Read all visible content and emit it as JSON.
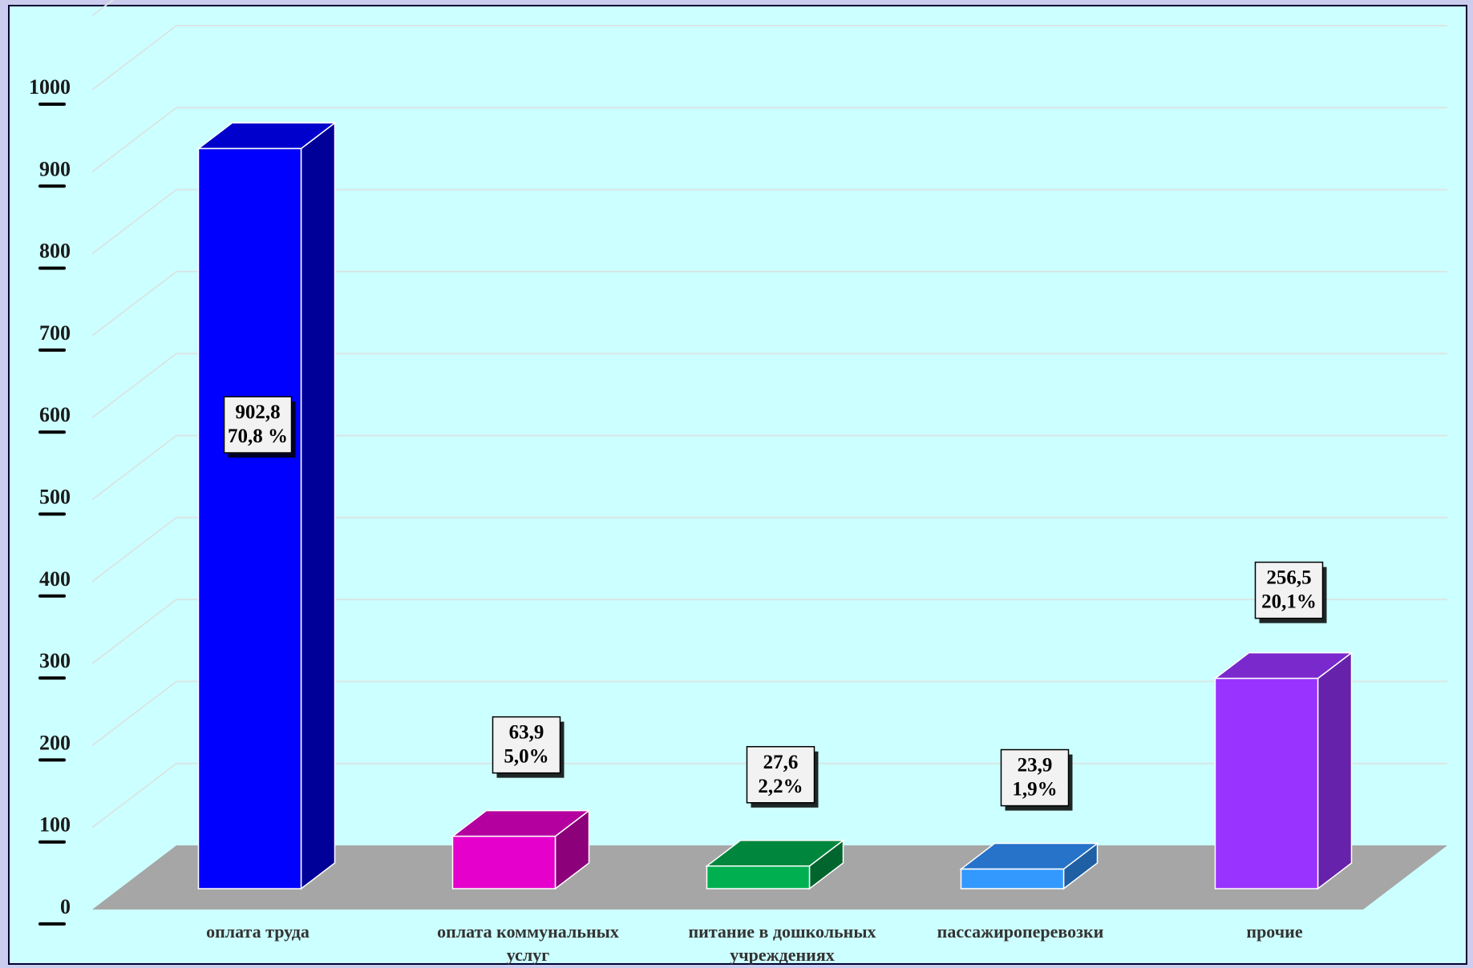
{
  "chart_data": {
    "type": "bar",
    "title": "",
    "xlabel": "",
    "ylabel": "",
    "ylim": [
      0,
      1000
    ],
    "yticks": [
      0,
      100,
      200,
      300,
      400,
      500,
      600,
      700,
      800,
      900,
      1000
    ],
    "grid": true,
    "categories": [
      [
        "оплата труда"
      ],
      [
        "оплата коммунальных",
        "услуг"
      ],
      [
        "питание в дошкольных",
        "учреждениях"
      ],
      [
        "пассажироперевозки"
      ],
      [
        "прочие"
      ]
    ],
    "values": [
      902.8,
      63.9,
      27.6,
      23.9,
      256.5
    ],
    "data_labels": [
      [
        "902,8",
        "70,8 %"
      ],
      [
        "63,9",
        "5,0%"
      ],
      [
        "27,6",
        "2,2%"
      ],
      [
        "23,9",
        "1,9%"
      ],
      [
        "256,5",
        "20,1%"
      ]
    ],
    "colors": [
      {
        "front": "#0000ff",
        "top": "#0000cc",
        "side": "#000099"
      },
      {
        "front": "#e600cc",
        "top": "#b3009e",
        "side": "#8c007a"
      },
      {
        "front": "#00b050",
        "top": "#00873d",
        "side": "#00662e"
      },
      {
        "front": "#3399ff",
        "top": "#2673c9",
        "side": "#1f5fa3"
      },
      {
        "front": "#9933ff",
        "top": "#7a29cc",
        "side": "#6622aa"
      }
    ]
  }
}
